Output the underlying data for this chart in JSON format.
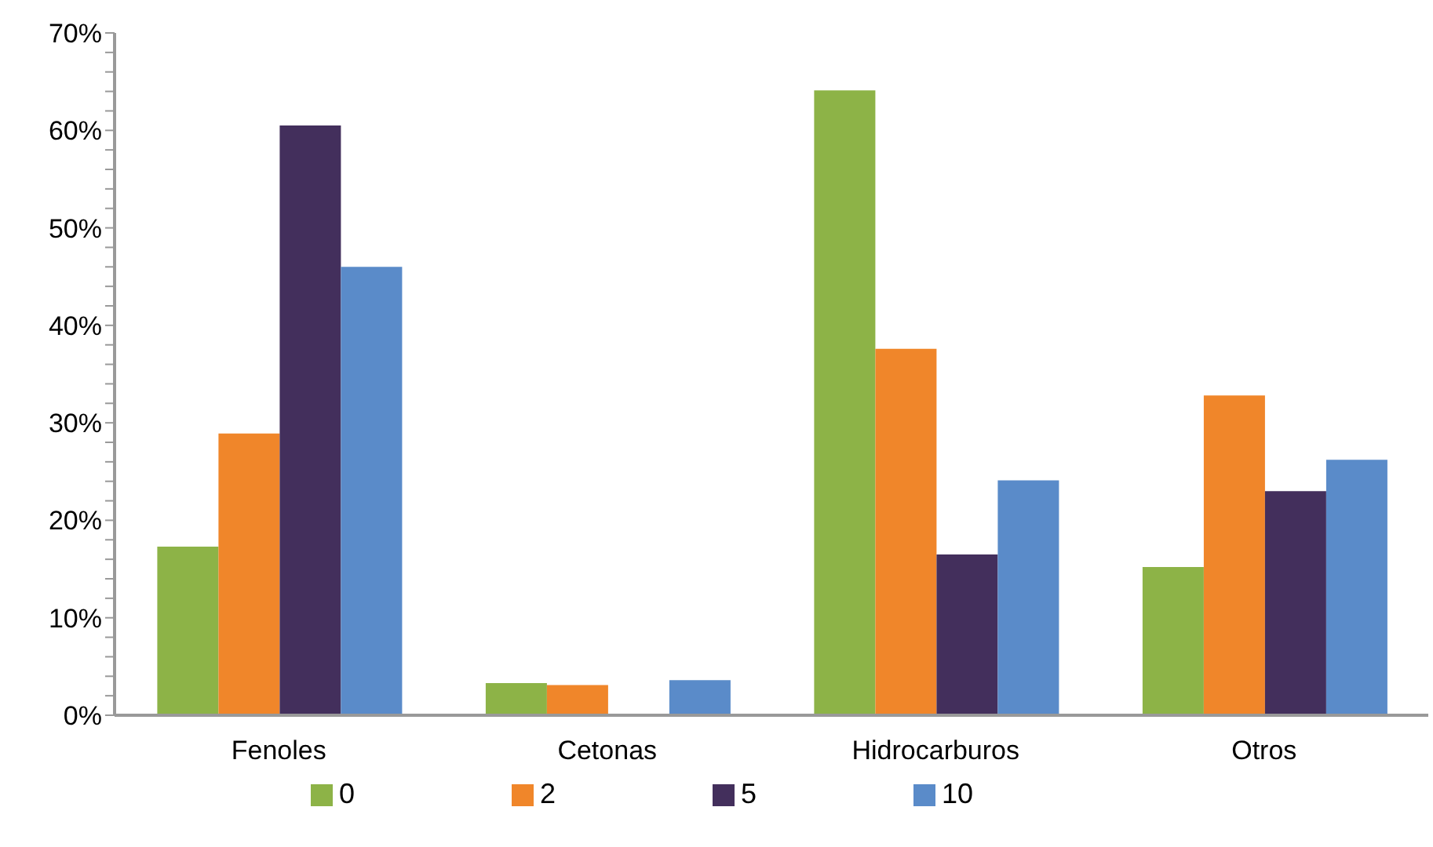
{
  "chart_data": {
    "type": "bar",
    "categories": [
      "Fenoles",
      "Cetonas",
      "Hidrocarburos",
      "Otros"
    ],
    "series": [
      {
        "name": "0",
        "color": "#8db347",
        "values": [
          17.3,
          3.3,
          64.1,
          15.2
        ]
      },
      {
        "name": "2",
        "color": "#f0862a",
        "values": [
          28.9,
          3.1,
          37.6,
          32.8
        ]
      },
      {
        "name": "5",
        "color": "#432f5c",
        "values": [
          60.5,
          null,
          16.5,
          23.0
        ]
      },
      {
        "name": "10",
        "color": "#5a8bc9",
        "values": [
          46.0,
          3.6,
          24.1,
          26.2
        ]
      }
    ],
    "ylim": [
      0,
      70
    ],
    "yticks": [
      {
        "value": 0,
        "label": "0%"
      },
      {
        "value": 2,
        "label": null
      },
      {
        "value": 4,
        "label": null
      },
      {
        "value": 6,
        "label": null
      },
      {
        "value": 8,
        "label": null
      },
      {
        "value": 10,
        "label": "10%"
      },
      {
        "value": 12,
        "label": null
      },
      {
        "value": 14,
        "label": null
      },
      {
        "value": 16,
        "label": null
      },
      {
        "value": 18,
        "label": null
      },
      {
        "value": 20,
        "label": "20%"
      },
      {
        "value": 22,
        "label": null
      },
      {
        "value": 24,
        "label": null
      },
      {
        "value": 26,
        "label": null
      },
      {
        "value": 28,
        "label": null
      },
      {
        "value": 30,
        "label": "30%"
      },
      {
        "value": 32,
        "label": null
      },
      {
        "value": 34,
        "label": null
      },
      {
        "value": 36,
        "label": null
      },
      {
        "value": 38,
        "label": null
      },
      {
        "value": 40,
        "label": "40%"
      },
      {
        "value": 42,
        "label": null
      },
      {
        "value": 44,
        "label": null
      },
      {
        "value": 46,
        "label": null
      },
      {
        "value": 48,
        "label": null
      },
      {
        "value": 50,
        "label": "50%"
      },
      {
        "value": 52,
        "label": null
      },
      {
        "value": 54,
        "label": null
      },
      {
        "value": 56,
        "label": null
      },
      {
        "value": 58,
        "label": null
      },
      {
        "value": 60,
        "label": "60%"
      },
      {
        "value": 62,
        "label": null
      },
      {
        "value": 64,
        "label": null
      },
      {
        "value": 66,
        "label": null
      },
      {
        "value": 68,
        "label": null
      },
      {
        "value": 70,
        "label": "70%"
      }
    ],
    "legend": "bottom",
    "grid": false
  }
}
